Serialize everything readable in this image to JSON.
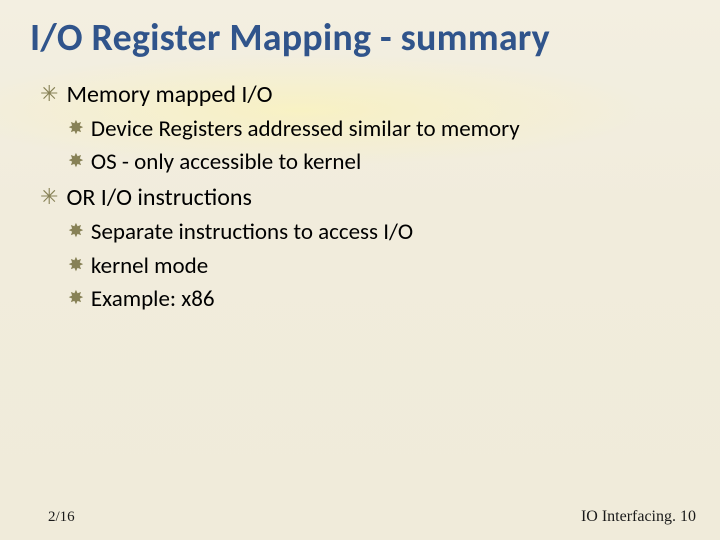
{
  "title": "I/O Register Mapping - summary",
  "colors": {
    "title": "#30548b",
    "bullet": "#878156",
    "background": "#f2eedf",
    "text": "#000000"
  },
  "font_sizes": {
    "title": 38,
    "level1": 24,
    "level2": 23,
    "footer_date": 15,
    "footer_page": 16
  },
  "bullets": {
    "level1_glyph": "✳",
    "level2_glyph": "✸"
  },
  "content": [
    {
      "level": 1,
      "text": "Memory mapped I/O",
      "children": [
        {
          "level": 2,
          "text": "Device Registers  addressed similar to memory"
        },
        {
          "level": 2,
          "text": "OS  - only accessible to kernel"
        }
      ]
    },
    {
      "level": 1,
      "text": "OR I/O instructions",
      "children": [
        {
          "level": 2,
          "text": "Separate instructions to access I/O"
        },
        {
          "level": 2,
          "text": " kernel mode"
        },
        {
          "level": 2,
          "text": "Example: x86"
        }
      ]
    }
  ],
  "footer": {
    "date": "2/16",
    "page_label": "IO Interfacing. 10"
  }
}
